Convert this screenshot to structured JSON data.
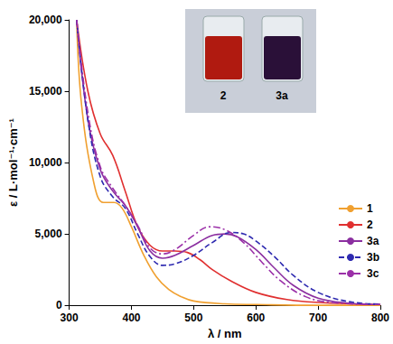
{
  "chart_data": {
    "type": "line",
    "x_label": "λ / nm",
    "y_label": "ε / L·mol⁻¹·cm⁻¹",
    "xlim": [
      300,
      800
    ],
    "xticks": [
      300,
      400,
      500,
      600,
      700,
      800
    ],
    "ylim": [
      0,
      20000
    ],
    "yticks": [
      {
        "value": 0,
        "label": "0"
      },
      {
        "value": 5000,
        "label": "5,000"
      },
      {
        "value": 10000,
        "label": "10,000"
      },
      {
        "value": 15000,
        "label": "15,000"
      },
      {
        "value": 20000,
        "label": "20,000"
      }
    ],
    "grid": false,
    "legend": "right",
    "annotations": [
      "2",
      "3a"
    ],
    "series": [
      {
        "name": "1",
        "color": "#f0a030",
        "line_style": "solid",
        "x": [
          312,
          320,
          340,
          355,
          372,
          385,
          400,
          420,
          440,
          460,
          480,
          500,
          550,
          600,
          700,
          800
        ],
        "values": [
          20000,
          14000,
          8500,
          7200,
          7200,
          6800,
          5500,
          3500,
          2000,
          1100,
          600,
          300,
          100,
          50,
          0,
          0
        ]
      },
      {
        "name": "2",
        "color": "#e03030",
        "line_style": "solid",
        "x": [
          312,
          330,
          350,
          370,
          390,
          410,
          430,
          450,
          470,
          490,
          510,
          530,
          560,
          600,
          650,
          700,
          800
        ],
        "values": [
          20000,
          15000,
          12000,
          10500,
          8000,
          5500,
          4200,
          3800,
          3800,
          3700,
          3200,
          2500,
          1700,
          900,
          400,
          200,
          50
        ]
      },
      {
        "name": "3a",
        "color": "#8b2fa0",
        "line_style": "solid",
        "x": [
          312,
          330,
          350,
          370,
          390,
          410,
          430,
          450,
          470,
          500,
          530,
          550,
          570,
          600,
          630,
          660,
          700,
          750,
          800
        ],
        "values": [
          20000,
          13000,
          9500,
          8000,
          7000,
          5500,
          3800,
          3300,
          3500,
          4200,
          4900,
          5000,
          4800,
          3900,
          2600,
          1400,
          500,
          150,
          50
        ]
      },
      {
        "name": "3b",
        "color": "#2e2ab0",
        "line_style": "dashed",
        "x": [
          312,
          330,
          350,
          370,
          390,
          410,
          430,
          450,
          470,
          500,
          530,
          560,
          580,
          600,
          630,
          660,
          700,
          750,
          800
        ],
        "values": [
          20000,
          13000,
          9000,
          7600,
          6800,
          5000,
          3400,
          2800,
          2900,
          3500,
          4400,
          5100,
          5000,
          4500,
          3400,
          2100,
          900,
          250,
          80
        ]
      },
      {
        "name": "3c",
        "color": "#9b30a8",
        "line_style": "dashdot",
        "x": [
          312,
          330,
          350,
          370,
          390,
          410,
          430,
          450,
          470,
          500,
          525,
          550,
          580,
          610,
          640,
          680,
          720,
          800
        ],
        "values": [
          20000,
          13500,
          9700,
          8200,
          7000,
          5600,
          4000,
          3600,
          3900,
          4900,
          5500,
          5300,
          4400,
          3000,
          1700,
          600,
          200,
          50
        ]
      }
    ]
  }
}
